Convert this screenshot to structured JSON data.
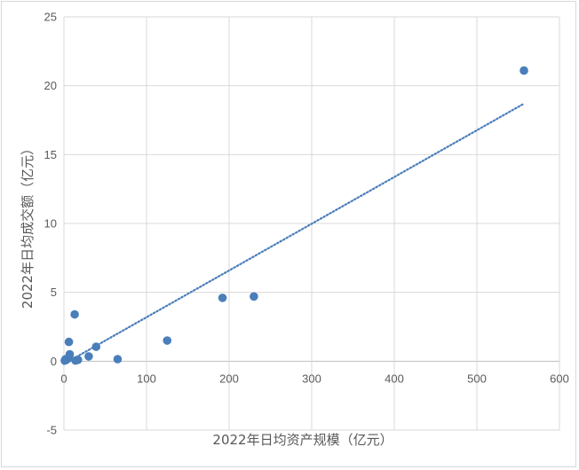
{
  "chart_data": {
    "type": "scatter",
    "title": "",
    "xlabel": "2022年日均资产规模（亿元）",
    "ylabel": "2022年日均成交额（亿元）",
    "xlim": [
      0,
      600
    ],
    "ylim": [
      -5,
      25
    ],
    "xticks": [
      0,
      100,
      200,
      300,
      400,
      500,
      600
    ],
    "yticks": [
      -5,
      0,
      5,
      10,
      15,
      20,
      25
    ],
    "grid": true,
    "legend": "none",
    "marker_color": "#4a7ebb",
    "trendline": {
      "style": "dotted",
      "color": "#4a7ebb",
      "x_start": 0,
      "y_start": -0.2,
      "x_end": 557,
      "y_end": 18.7
    },
    "points": [
      {
        "x": 557,
        "y": 21.1
      },
      {
        "x": 230,
        "y": 4.7
      },
      {
        "x": 192,
        "y": 4.6
      },
      {
        "x": 125,
        "y": 1.5
      },
      {
        "x": 65,
        "y": 0.15
      },
      {
        "x": 39,
        "y": 1.05
      },
      {
        "x": 30,
        "y": 0.35
      },
      {
        "x": 17,
        "y": 0.1
      },
      {
        "x": 14,
        "y": 0.05
      },
      {
        "x": 13,
        "y": 3.4
      },
      {
        "x": 6,
        "y": 1.4
      },
      {
        "x": 7,
        "y": 0.5
      },
      {
        "x": 5,
        "y": 0.2
      },
      {
        "x": 3,
        "y": 0.1
      },
      {
        "x": 1,
        "y": 0.05
      },
      {
        "x": 2,
        "y": 0.15
      }
    ]
  }
}
